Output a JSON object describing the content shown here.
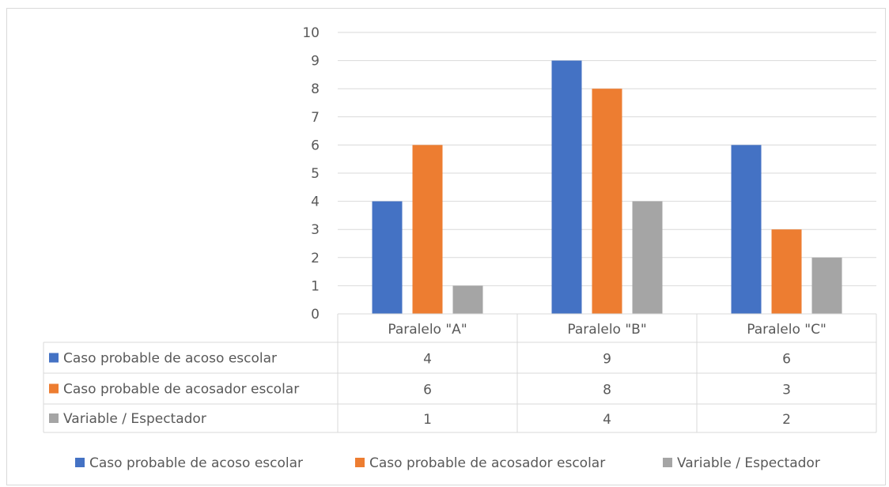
{
  "chart_data": {
    "type": "bar",
    "categories": [
      "Paralelo \"A\"",
      "Paralelo \"B\"",
      "Paralelo \"C\""
    ],
    "series": [
      {
        "name": "Caso probable de acoso escolar",
        "values": [
          4,
          9,
          6
        ],
        "color": "#4472c4"
      },
      {
        "name": "Caso probable de acosador escolar",
        "values": [
          6,
          8,
          3
        ],
        "color": "#ed7d31"
      },
      {
        "name": "Variable / Espectador",
        "values": [
          1,
          4,
          2
        ],
        "color": "#a5a5a5"
      }
    ],
    "yticks": [
      0,
      1,
      2,
      3,
      4,
      5,
      6,
      7,
      8,
      9,
      10
    ],
    "ylim": [
      0,
      10
    ],
    "grid": true,
    "data_table": true,
    "legend_position": "bottom"
  }
}
